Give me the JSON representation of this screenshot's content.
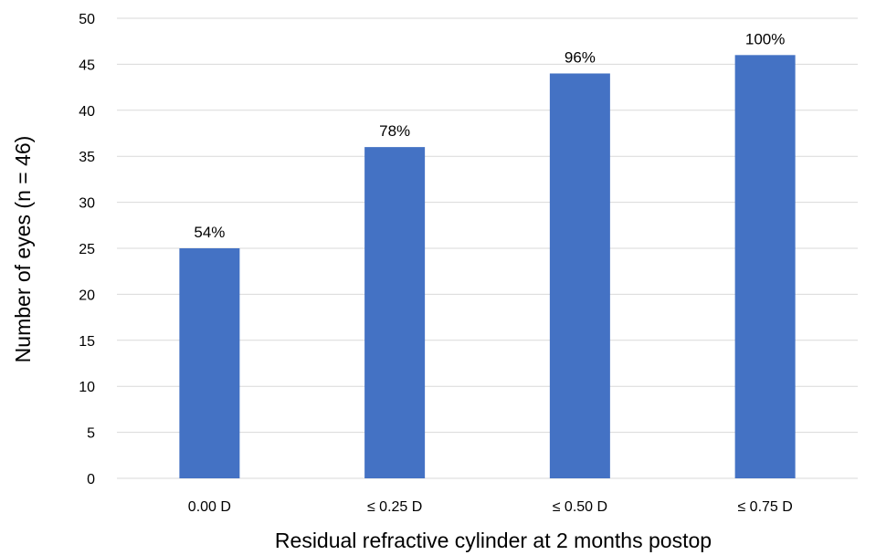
{
  "chart_data": {
    "type": "bar",
    "title": "",
    "xlabel": "Residual refractive cylinder at 2 months postop",
    "ylabel": "Number of eyes (n = 46)",
    "categories": [
      "0.00 D",
      "≤ 0.25 D",
      "≤ 0.50 D",
      "≤ 0.75 D"
    ],
    "values": [
      25,
      36,
      44,
      46
    ],
    "data_labels": [
      "54%",
      "78%",
      "96%",
      "100%"
    ],
    "ylim": [
      0,
      50
    ],
    "yticks": [
      0,
      5,
      10,
      15,
      20,
      25,
      30,
      35,
      40,
      45,
      50
    ],
    "grid": true,
    "legend": "none",
    "bar_color": "#4472C4",
    "grid_color": "#D9D9D9"
  }
}
